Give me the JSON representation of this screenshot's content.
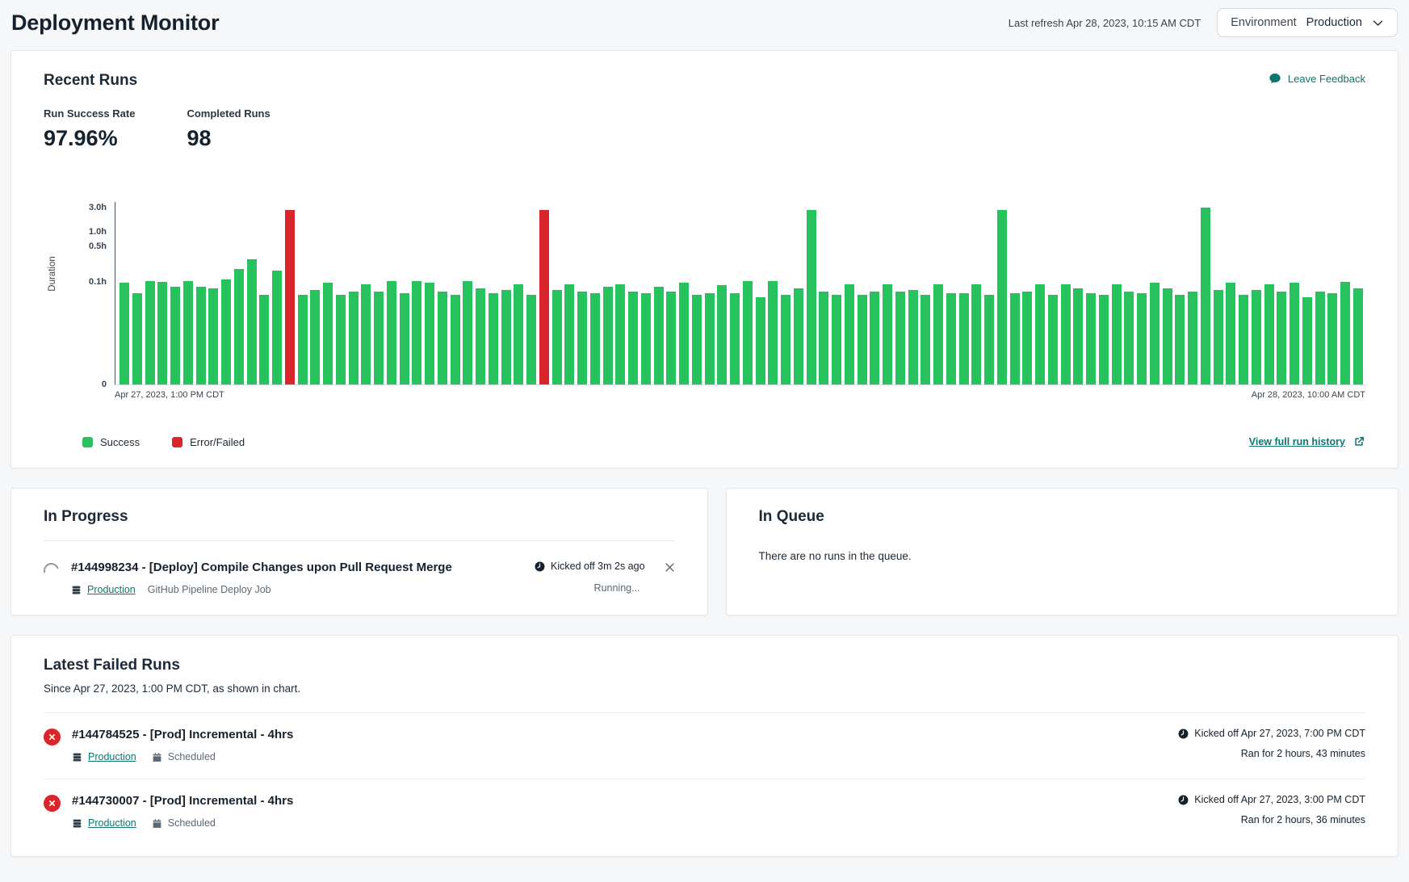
{
  "colors": {
    "accent_teal": "#0e756f",
    "success_green": "#27c25d",
    "failed_red": "#d8262c"
  },
  "header": {
    "title": "Deployment Monitor",
    "last_refresh": "Last refresh Apr 28, 2023, 10:15 AM CDT",
    "environment": {
      "label": "Environment",
      "value": "Production"
    }
  },
  "recent_runs": {
    "title": "Recent Runs",
    "leave_feedback_label": "Leave Feedback",
    "stats": [
      {
        "label": "Run Success Rate",
        "value": "97.96%"
      },
      {
        "label": "Completed Runs",
        "value": "98"
      }
    ],
    "view_full_history_label": "View full run history"
  },
  "chart_data": {
    "type": "bar",
    "ylabel": "Duration",
    "yscale": "log",
    "unit": "hours",
    "ylim": [
      0,
      3.0
    ],
    "grid": false,
    "legend_position": "bottom-left",
    "y_axis_ticks": [
      {
        "label": "3.0h",
        "value": 3.0
      },
      {
        "label": "1.0h",
        "value": 1.0
      },
      {
        "label": "0.5h",
        "value": 0.5
      },
      {
        "label": "0.1h",
        "value": 0.1
      },
      {
        "label": "0",
        "value": 0
      }
    ],
    "x_start_label": "Apr 27, 2023, 1:00 PM CDT",
    "x_end_label": "Apr 28, 2023, 10:00 AM CDT",
    "legend": [
      {
        "label": "Success",
        "color": "#27c25d"
      },
      {
        "label": "Error/Failed",
        "color": "#d8262c"
      }
    ],
    "completed_runs": 98,
    "failed_run_indexes": [
      13,
      33
    ],
    "durations_hours": [
      0.095,
      0.06,
      0.105,
      0.1,
      0.08,
      0.105,
      0.08,
      0.075,
      0.11,
      0.18,
      0.28,
      0.055,
      0.17,
      2.7,
      0.055,
      0.07,
      0.095,
      0.055,
      0.065,
      0.09,
      0.065,
      0.105,
      0.06,
      0.105,
      0.095,
      0.065,
      0.055,
      0.105,
      0.075,
      0.06,
      0.07,
      0.09,
      0.055,
      2.7,
      0.07,
      0.09,
      0.065,
      0.06,
      0.08,
      0.09,
      0.065,
      0.06,
      0.08,
      0.065,
      0.095,
      0.055,
      0.06,
      0.085,
      0.06,
      0.105,
      0.05,
      0.105,
      0.055,
      0.075,
      2.7,
      0.065,
      0.055,
      0.09,
      0.055,
      0.065,
      0.09,
      0.065,
      0.07,
      0.055,
      0.09,
      0.06,
      0.06,
      0.09,
      0.055,
      2.7,
      0.06,
      0.065,
      0.09,
      0.055,
      0.09,
      0.075,
      0.06,
      0.055,
      0.09,
      0.065,
      0.06,
      0.095,
      0.075,
      0.055,
      0.065,
      3.0,
      0.07,
      0.095,
      0.055,
      0.07,
      0.09,
      0.065,
      0.095,
      0.05,
      0.065,
      0.06,
      0.1,
      0.075
    ]
  },
  "in_progress": {
    "title": "In Progress",
    "run": {
      "name": "#144998234 - [Deploy] Compile Changes upon Pull Request Merge",
      "environment": "Production",
      "job_type": "GitHub Pipeline Deploy Job",
      "kicked_off": "Kicked off 3m 2s ago",
      "status": "Running..."
    }
  },
  "in_queue": {
    "title": "In Queue",
    "empty_message": "There are no runs in the queue."
  },
  "latest_failed": {
    "title": "Latest Failed Runs",
    "subtitle": "Since Apr 27, 2023, 1:00 PM CDT, as shown in chart.",
    "runs": [
      {
        "name": "#144784525 - [Prod] Incremental - 4hrs",
        "environment": "Production",
        "trigger": "Scheduled",
        "kicked_off": "Kicked off Apr 27, 2023, 7:00 PM CDT",
        "duration": "Ran for 2 hours, 43 minutes"
      },
      {
        "name": "#144730007 - [Prod] Incremental - 4hrs",
        "environment": "Production",
        "trigger": "Scheduled",
        "kicked_off": "Kicked off Apr 27, 2023, 3:00 PM CDT",
        "duration": "Ran for 2 hours, 36 minutes"
      }
    ]
  }
}
